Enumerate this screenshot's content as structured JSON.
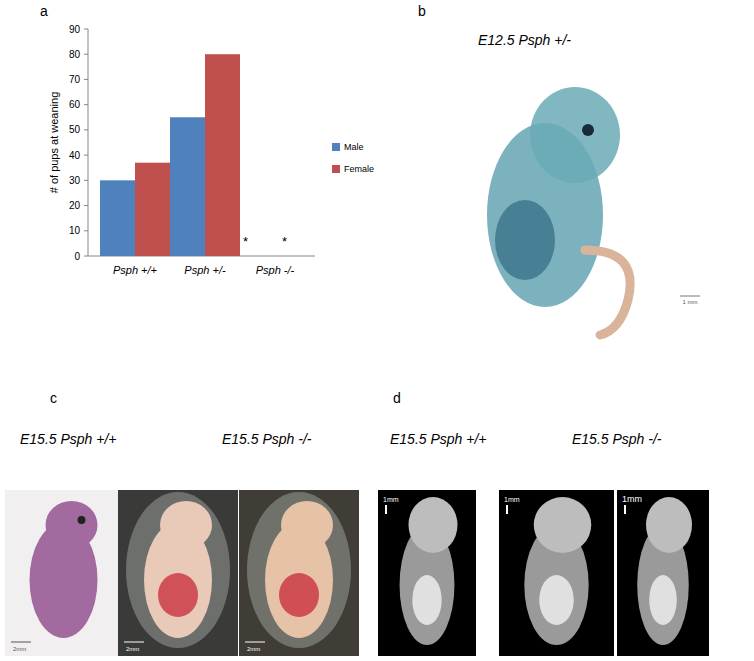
{
  "chart_data": {
    "type": "bar",
    "y_label": "# of pups at weaning",
    "categories": [
      "Psph +/+",
      "Psph +/-",
      "Psph -/-"
    ],
    "series": [
      {
        "name": "Male",
        "color": "#4f81bd",
        "values": [
          30,
          55,
          0
        ]
      },
      {
        "name": "Female",
        "color": "#c0504d",
        "values": [
          37,
          80,
          0
        ]
      }
    ],
    "ylim": [
      0,
      90
    ],
    "yticks": [
      0,
      10,
      20,
      30,
      40,
      50,
      60,
      70,
      80,
      90
    ],
    "legend": "right",
    "annotations": [
      "*",
      "*"
    ]
  },
  "panels": [
    {
      "label": "a"
    },
    {
      "label": "b",
      "titles": [
        "E12.5 Psph +/-"
      ],
      "scale_bars": [
        "1 mm"
      ]
    },
    {
      "label": "c",
      "titles": [
        "E15.5 Psph +/+",
        "E15.5 Psph -/-"
      ],
      "scale_bars": [
        "2mm",
        "2mm",
        "2mm"
      ]
    },
    {
      "label": "d",
      "titles": [
        "E15.5 Psph +/+",
        "E15.5 Psph -/-"
      ],
      "scale_bars": [
        "1mm",
        "1mm",
        "1mm"
      ]
    }
  ]
}
